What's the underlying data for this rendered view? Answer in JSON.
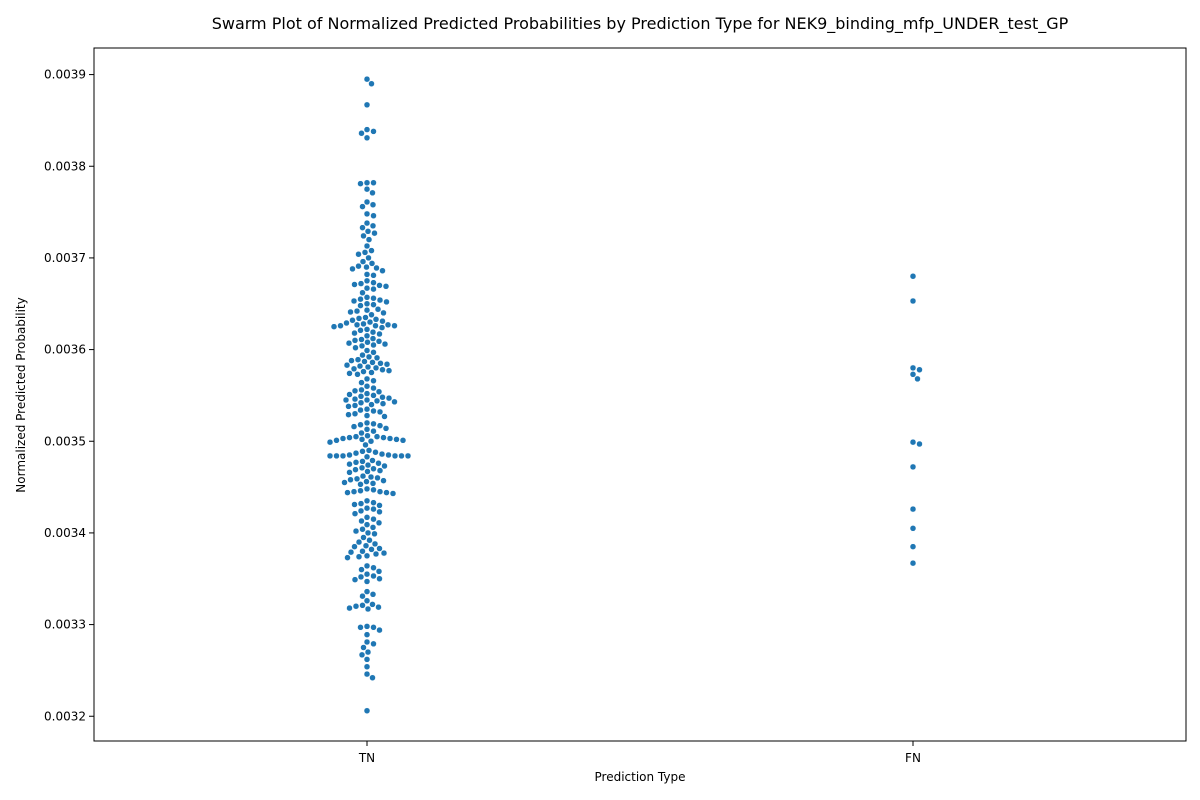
{
  "chart_data": {
    "type": "scatter",
    "subtype": "swarm",
    "title": "Swarm Plot of Normalized Predicted Probabilities by Prediction Type for NEK9_binding_mfp_UNDER_test_GP",
    "xlabel": "Prediction Type",
    "ylabel": "Normalized Predicted Probability",
    "categories": [
      "TN",
      "FN"
    ],
    "ylim": [
      0.003173,
      0.003929
    ],
    "yticks": [
      0.0032,
      0.0033,
      0.0034,
      0.0035,
      0.0036,
      0.0037,
      0.0038,
      0.0039
    ],
    "ytick_labels": [
      "0.0032",
      "0.0033",
      "0.0034",
      "0.0035",
      "0.0036",
      "0.0037",
      "0.0038",
      "0.0039"
    ],
    "marker_color": "#1f77b4",
    "grid": false,
    "legend": "none",
    "series": [
      {
        "category": "TN",
        "values": [
          0.003895,
          0.00389,
          0.003867,
          0.00384,
          0.003838,
          0.003836,
          0.003831,
          0.003782,
          0.003782,
          0.003781,
          0.003775,
          0.003771,
          0.003761,
          0.003758,
          0.003756,
          0.003748,
          0.003746,
          0.003738,
          0.003735,
          0.003733,
          0.003729,
          0.003727,
          0.003724,
          0.00372,
          0.003713,
          0.003708,
          0.003706,
          0.003704,
          0.0037,
          0.003696,
          0.003694,
          0.003691,
          0.00369,
          0.003689,
          0.003688,
          0.003686,
          0.003682,
          0.003681,
          0.003675,
          0.003673,
          0.003672,
          0.003671,
          0.00367,
          0.003669,
          0.003667,
          0.003666,
          0.003662,
          0.003657,
          0.003656,
          0.003655,
          0.003654,
          0.003653,
          0.003652,
          0.00365,
          0.003649,
          0.003648,
          0.003644,
          0.003643,
          0.003642,
          0.003641,
          0.00364,
          0.003638,
          0.003635,
          0.003634,
          0.003633,
          0.003632,
          0.003631,
          0.00363,
          0.003629,
          0.003628,
          0.003627,
          0.003627,
          0.003626,
          0.003626,
          0.003626,
          0.003625,
          0.003624,
          0.003622,
          0.003621,
          0.003619,
          0.003618,
          0.003617,
          0.003615,
          0.003612,
          0.003611,
          0.00361,
          0.003609,
          0.003608,
          0.003607,
          0.003606,
          0.003605,
          0.003604,
          0.003602,
          0.003599,
          0.003597,
          0.003594,
          0.003592,
          0.003591,
          0.003589,
          0.003588,
          0.003587,
          0.003586,
          0.003585,
          0.003584,
          0.003583,
          0.003582,
          0.003581,
          0.00358,
          0.003579,
          0.003578,
          0.003577,
          0.003576,
          0.003575,
          0.003574,
          0.003573,
          0.003568,
          0.003566,
          0.003564,
          0.00356,
          0.003558,
          0.003556,
          0.003555,
          0.003554,
          0.003552,
          0.003551,
          0.00355,
          0.003549,
          0.003548,
          0.003547,
          0.003546,
          0.003545,
          0.003545,
          0.003544,
          0.003543,
          0.003542,
          0.003541,
          0.00354,
          0.003539,
          0.003538,
          0.003535,
          0.003534,
          0.003533,
          0.003532,
          0.00353,
          0.003529,
          0.003528,
          0.003527,
          0.00352,
          0.003519,
          0.003518,
          0.003517,
          0.003516,
          0.003514,
          0.003513,
          0.003511,
          0.003509,
          0.003506,
          0.003505,
          0.003505,
          0.003504,
          0.003504,
          0.003503,
          0.003503,
          0.003502,
          0.003502,
          0.003501,
          0.003501,
          0.0035,
          0.003499,
          0.003496,
          0.00349,
          0.003489,
          0.003488,
          0.003487,
          0.003486,
          0.003485,
          0.003485,
          0.003484,
          0.003484,
          0.003484,
          0.003484,
          0.003484,
          0.003484,
          0.003483,
          0.003479,
          0.003478,
          0.003477,
          0.003476,
          0.003475,
          0.003474,
          0.003473,
          0.003471,
          0.00347,
          0.003469,
          0.003468,
          0.003467,
          0.003466,
          0.003462,
          0.003461,
          0.00346,
          0.003459,
          0.003458,
          0.003457,
          0.003456,
          0.003455,
          0.003454,
          0.003453,
          0.003448,
          0.003447,
          0.003446,
          0.003445,
          0.003445,
          0.003444,
          0.003444,
          0.003443,
          0.003435,
          0.003433,
          0.003432,
          0.003431,
          0.00343,
          0.003427,
          0.003426,
          0.003424,
          0.003423,
          0.003421,
          0.003417,
          0.003415,
          0.003413,
          0.003411,
          0.003409,
          0.003406,
          0.003404,
          0.003402,
          0.0034,
          0.003399,
          0.003395,
          0.003392,
          0.00339,
          0.003388,
          0.003386,
          0.003385,
          0.003383,
          0.003382,
          0.00338,
          0.003379,
          0.003378,
          0.003377,
          0.003375,
          0.003374,
          0.003373,
          0.003364,
          0.003362,
          0.00336,
          0.003358,
          0.003355,
          0.003353,
          0.003352,
          0.00335,
          0.003349,
          0.003347,
          0.003336,
          0.003333,
          0.003331,
          0.003326,
          0.003322,
          0.003321,
          0.00332,
          0.003319,
          0.003318,
          0.003317,
          0.003298,
          0.003297,
          0.003297,
          0.003294,
          0.003289,
          0.003281,
          0.003279,
          0.003275,
          0.00327,
          0.003267,
          0.003262,
          0.003254,
          0.003246,
          0.003242,
          0.003206
        ]
      },
      {
        "category": "FN",
        "values": [
          0.00368,
          0.003653,
          0.00358,
          0.003578,
          0.003573,
          0.003568,
          0.003499,
          0.003497,
          0.003472,
          0.003426,
          0.003405,
          0.003385,
          0.003367
        ]
      }
    ]
  }
}
